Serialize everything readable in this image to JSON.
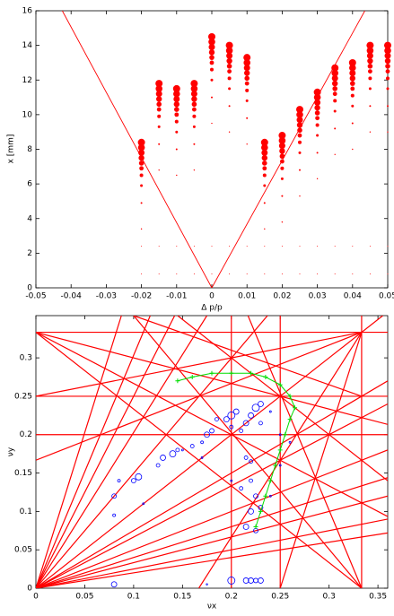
{
  "chart_data": [
    {
      "type": "scatter",
      "xlabel": "Δ p/p",
      "ylabel": "x [mm]",
      "color": "#ff0000",
      "xlim": [
        -0.05,
        0.05
      ],
      "ylim": [
        0,
        16
      ],
      "xticks": [
        -0.05,
        -0.04,
        -0.03,
        -0.02,
        -0.01,
        0,
        0.01,
        0.02,
        0.03,
        0.04,
        0.05
      ],
      "yticks": [
        0,
        2,
        4,
        6,
        8,
        10,
        12,
        14,
        16
      ],
      "lines": [
        {
          "x": [
            -0.0425,
            0,
            0.0435
          ],
          "y": [
            16,
            0,
            16
          ]
        }
      ],
      "columns": [
        {
          "x": -0.02,
          "y": [
            8.4,
            8.1,
            7.8,
            7.5,
            7.2,
            6.9,
            6.5,
            5.9,
            4.9,
            3.4,
            2.4,
            0.8
          ],
          "size": [
            4,
            3.8,
            3.5,
            3.2,
            2.8,
            2.4,
            2,
            1.5,
            1,
            0.7,
            0.5,
            0.5
          ]
        },
        {
          "x": -0.015,
          "y": [
            11.8,
            11.5,
            11.2,
            10.9,
            10.6,
            10.3,
            9.9,
            9.3,
            8.3,
            6.8,
            2.4,
            0.8
          ],
          "size": [
            4,
            3.8,
            3.5,
            3.2,
            2.8,
            2.4,
            2,
            1.5,
            1,
            0.7,
            0.5,
            0.5
          ]
        },
        {
          "x": -0.01,
          "y": [
            11.5,
            11.2,
            10.9,
            10.6,
            10.3,
            10.0,
            9.6,
            9.0,
            8.0,
            6.5,
            2.4,
            0.8
          ],
          "size": [
            4,
            3.8,
            3.5,
            3.2,
            2.8,
            2.4,
            2,
            1.5,
            1,
            0.7,
            0.5,
            0.5
          ]
        },
        {
          "x": -0.005,
          "y": [
            11.8,
            11.5,
            11.2,
            10.9,
            10.6,
            10.3,
            9.9,
            9.3,
            8.3,
            6.8,
            2.4,
            0.8
          ],
          "size": [
            4,
            3.8,
            3.5,
            3.2,
            2.8,
            2.4,
            2,
            1.5,
            1,
            0.7,
            0.5,
            0.5
          ]
        },
        {
          "x": 0,
          "y": [
            14.5,
            14.2,
            13.9,
            13.6,
            13.3,
            13.0,
            12.6,
            12.0,
            11.0,
            9.5,
            2.4,
            0.8
          ],
          "size": [
            4,
            3.8,
            3.5,
            3.2,
            2.8,
            2.4,
            2,
            1.5,
            1,
            0.7,
            0.5,
            0.5
          ]
        },
        {
          "x": 0.005,
          "y": [
            14,
            13.7,
            13.4,
            13.1,
            12.8,
            12.5,
            12.1,
            11.5,
            10.5,
            9.0,
            2.4,
            0.8
          ],
          "size": [
            4,
            3.8,
            3.5,
            3.2,
            2.8,
            2.4,
            2,
            1.5,
            1,
            0.7,
            0.5,
            0.5
          ]
        },
        {
          "x": 0.01,
          "y": [
            13.3,
            13.0,
            12.7,
            12.4,
            12.1,
            11.8,
            11.4,
            10.8,
            9.8,
            8.3,
            2.4,
            0.8
          ],
          "size": [
            4,
            3.8,
            3.5,
            3.2,
            2.8,
            2.4,
            2,
            1.5,
            1,
            0.7,
            0.5,
            0.5
          ]
        },
        {
          "x": 0.015,
          "y": [
            8.4,
            8.1,
            7.8,
            7.5,
            7.2,
            6.9,
            6.5,
            5.9,
            4.9,
            3.4,
            2.4,
            0.8
          ],
          "size": [
            4,
            3.8,
            3.5,
            3.2,
            2.8,
            2.4,
            2,
            1.5,
            1,
            0.7,
            0.5,
            0.5
          ]
        },
        {
          "x": 0.02,
          "y": [
            8.8,
            8.5,
            8.2,
            7.9,
            7.6,
            7.3,
            6.9,
            6.3,
            5.3,
            3.8,
            2.4,
            0.8
          ],
          "size": [
            4,
            3.8,
            3.5,
            3.2,
            2.8,
            2.4,
            2,
            1.5,
            1,
            0.7,
            0.5,
            0.5
          ]
        },
        {
          "x": 0.025,
          "y": [
            10.3,
            10.0,
            9.7,
            9.4,
            9.1,
            8.8,
            8.4,
            7.8,
            6.8,
            5.3,
            2.4,
            0.8
          ],
          "size": [
            4,
            3.8,
            3.5,
            3.2,
            2.8,
            2.4,
            2,
            1.5,
            1,
            0.7,
            0.5,
            0.5
          ]
        },
        {
          "x": 0.03,
          "y": [
            11.3,
            11.0,
            10.7,
            10.4,
            10.1,
            9.8,
            9.4,
            8.8,
            7.8,
            6.3,
            2.4,
            0.8
          ],
          "size": [
            4,
            3.8,
            3.5,
            3.2,
            2.8,
            2.4,
            2,
            1.5,
            1,
            0.7,
            0.5,
            0.5
          ]
        },
        {
          "x": 0.035,
          "y": [
            12.7,
            12.4,
            12.1,
            11.8,
            11.5,
            11.2,
            10.8,
            10.2,
            9.2,
            7.7,
            2.4,
            0.8
          ],
          "size": [
            4,
            3.8,
            3.5,
            3.2,
            2.8,
            2.4,
            2,
            1.5,
            1,
            0.7,
            0.5,
            0.5
          ]
        },
        {
          "x": 0.04,
          "y": [
            13,
            12.7,
            12.4,
            12.1,
            11.8,
            11.5,
            11.1,
            10.5,
            9.5,
            8.0,
            2.4,
            0.8
          ],
          "size": [
            4,
            3.8,
            3.5,
            3.2,
            2.8,
            2.4,
            2,
            1.5,
            1,
            0.7,
            0.5,
            0.5
          ]
        },
        {
          "x": 0.045,
          "y": [
            14,
            13.7,
            13.4,
            13.1,
            12.8,
            12.5,
            12.1,
            11.5,
            10.5,
            9.0,
            2.4,
            0.8
          ],
          "size": [
            4,
            3.8,
            3.5,
            3.2,
            2.8,
            2.4,
            2,
            1.5,
            1,
            0.7,
            0.5,
            0.5
          ]
        },
        {
          "x": 0.05,
          "y": [
            14,
            13.7,
            13.4,
            13.1,
            12.8,
            12.5,
            12.1,
            11.5,
            10.5,
            9.0,
            2.4,
            0.8
          ],
          "size": [
            4,
            3.8,
            3.5,
            3.2,
            2.8,
            2.4,
            2,
            1.5,
            1,
            0.7,
            0.5,
            0.5
          ]
        }
      ]
    },
    {
      "type": "scatter",
      "xlabel": "νx",
      "ylabel": "νy",
      "color": "#0000ff",
      "line_color": "#ff0000",
      "xlim": [
        0,
        0.36
      ],
      "ylim": [
        0,
        0.355
      ],
      "xticks": [
        0,
        0.05,
        0.1,
        0.15,
        0.2,
        0.25,
        0.3,
        0.35
      ],
      "yticks": [
        0,
        0.05,
        0.1,
        0.15,
        0.2,
        0.25,
        0.3
      ],
      "lines": [
        {
          "x": [
            0,
            0.36
          ],
          "y": [
            0.3333,
            0.3333
          ]
        },
        {
          "x": [
            0,
            0.36
          ],
          "y": [
            0.25,
            0.25
          ]
        },
        {
          "x": [
            0,
            0.36
          ],
          "y": [
            0.2,
            0.2
          ]
        },
        {
          "x": [
            0.2,
            0.2
          ],
          "y": [
            0,
            0.355
          ]
        },
        {
          "x": [
            0.25,
            0.25
          ],
          "y": [
            0,
            0.355
          ]
        },
        {
          "x": [
            0.3333,
            0.3333
          ],
          "y": [
            0,
            0.355
          ]
        },
        {
          "x": [
            0,
            0.355
          ],
          "y": [
            0,
            0.355
          ]
        },
        {
          "x": [
            0,
            0.36
          ],
          "y": [
            0,
            0.072
          ]
        },
        {
          "x": [
            0,
            0.36
          ],
          "y": [
            0,
            0.09
          ]
        },
        {
          "x": [
            0,
            0.36
          ],
          "y": [
            0,
            0.12
          ]
        },
        {
          "x": [
            0,
            0.36
          ],
          "y": [
            0,
            0.144
          ]
        },
        {
          "x": [
            0,
            0.36
          ],
          "y": [
            0,
            0.18
          ]
        },
        {
          "x": [
            0,
            0.36
          ],
          "y": [
            0,
            0.24
          ]
        },
        {
          "x": [
            0,
            0.36
          ],
          "y": [
            0,
            0.27
          ]
        },
        {
          "x": [
            0,
            0.0875
          ],
          "y": [
            0,
            0.355
          ]
        },
        {
          "x": [
            0,
            0.117
          ],
          "y": [
            0,
            0.355
          ]
        },
        {
          "x": [
            0,
            0.142
          ],
          "y": [
            0,
            0.355
          ]
        },
        {
          "x": [
            0,
            0.175
          ],
          "y": [
            0,
            0.355
          ]
        },
        {
          "x": [
            0,
            0.237
          ],
          "y": [
            0,
            0.355
          ]
        },
        {
          "x": [
            0,
            0.36
          ],
          "y": [
            0.3333,
            0.2133
          ]
        },
        {
          "x": [
            0,
            0.36
          ],
          "y": [
            0.3333,
            0.0933
          ]
        },
        {
          "x": [
            0,
            0.3333
          ],
          "y": [
            0.3333,
            0
          ]
        },
        {
          "x": [
            0,
            0.3333
          ],
          "y": [
            0.25,
            0.3333
          ]
        },
        {
          "x": [
            0,
            0.3333
          ],
          "y": [
            0.1667,
            0.3333
          ]
        },
        {
          "x": [
            0.1667,
            0.3333
          ],
          "y": [
            0,
            0.3333
          ]
        },
        {
          "x": [
            0.25,
            0.3333
          ],
          "y": [
            0,
            0.3333
          ]
        },
        {
          "x": [
            0.3333,
            0.217
          ],
          "y": [
            0,
            0.355
          ]
        },
        {
          "x": [
            0.3333,
            0.1
          ],
          "y": [
            0,
            0.355
          ]
        },
        {
          "x": [
            0.145,
            0.36
          ],
          "y": [
            0.355,
            0.14
          ]
        },
        {
          "x": [
            0.1,
            0.3333
          ],
          "y": [
            0.355,
            0.25
          ]
        }
      ],
      "x": [
        0.08,
        0.08,
        0.08,
        0.085,
        0.1,
        0.105,
        0.11,
        0.125,
        0.13,
        0.14,
        0.145,
        0.15,
        0.16,
        0.17,
        0.175,
        0.18,
        0.185,
        0.195,
        0.2,
        0.2,
        0.205,
        0.21,
        0.215,
        0.22,
        0.225,
        0.23,
        0.23,
        0.215,
        0.22,
        0.22,
        0.225,
        0.23,
        0.22,
        0.215,
        0.225,
        0.21,
        0.2,
        0.215,
        0.22,
        0.225,
        0.23,
        0.24,
        0.25,
        0.26,
        0.25,
        0.24,
        0.2,
        0.17,
        0.175
      ],
      "y": [
        0.005,
        0.12,
        0.095,
        0.14,
        0.14,
        0.145,
        0.11,
        0.16,
        0.17,
        0.175,
        0.18,
        0.18,
        0.185,
        0.19,
        0.2,
        0.205,
        0.22,
        0.22,
        0.225,
        0.21,
        0.23,
        0.205,
        0.215,
        0.225,
        0.235,
        0.24,
        0.215,
        0.17,
        0.165,
        0.14,
        0.12,
        0.105,
        0.1,
        0.08,
        0.075,
        0.13,
        0.01,
        0.01,
        0.01,
        0.01,
        0.01,
        0.23,
        0.2,
        0.19,
        0.16,
        0.12,
        0.14,
        0.17,
        0.005
      ],
      "size": [
        3,
        2.5,
        1.5,
        1.5,
        2.5,
        3.5,
        1,
        2,
        3,
        3.5,
        2,
        1,
        2,
        1.5,
        3,
        2.5,
        2,
        3,
        4,
        2,
        3,
        2,
        3,
        3,
        4,
        3,
        2,
        2,
        2,
        2,
        2.5,
        2.5,
        3,
        3,
        2.5,
        2,
        4,
        3,
        3,
        2.5,
        3,
        1,
        1,
        1,
        1,
        1,
        1,
        1,
        0.8
      ],
      "path": {
        "color": "#00dd00",
        "x": [
          0.145,
          0.16,
          0.18,
          0.2,
          0.22,
          0.235,
          0.25,
          0.26,
          0.265,
          0.26,
          0.255,
          0.25,
          0.245,
          0.24,
          0.235,
          0.23,
          0.225
        ],
        "y": [
          0.27,
          0.275,
          0.28,
          0.28,
          0.28,
          0.275,
          0.265,
          0.25,
          0.235,
          0.22,
          0.2,
          0.18,
          0.16,
          0.14,
          0.12,
          0.1,
          0.08
        ]
      }
    }
  ]
}
